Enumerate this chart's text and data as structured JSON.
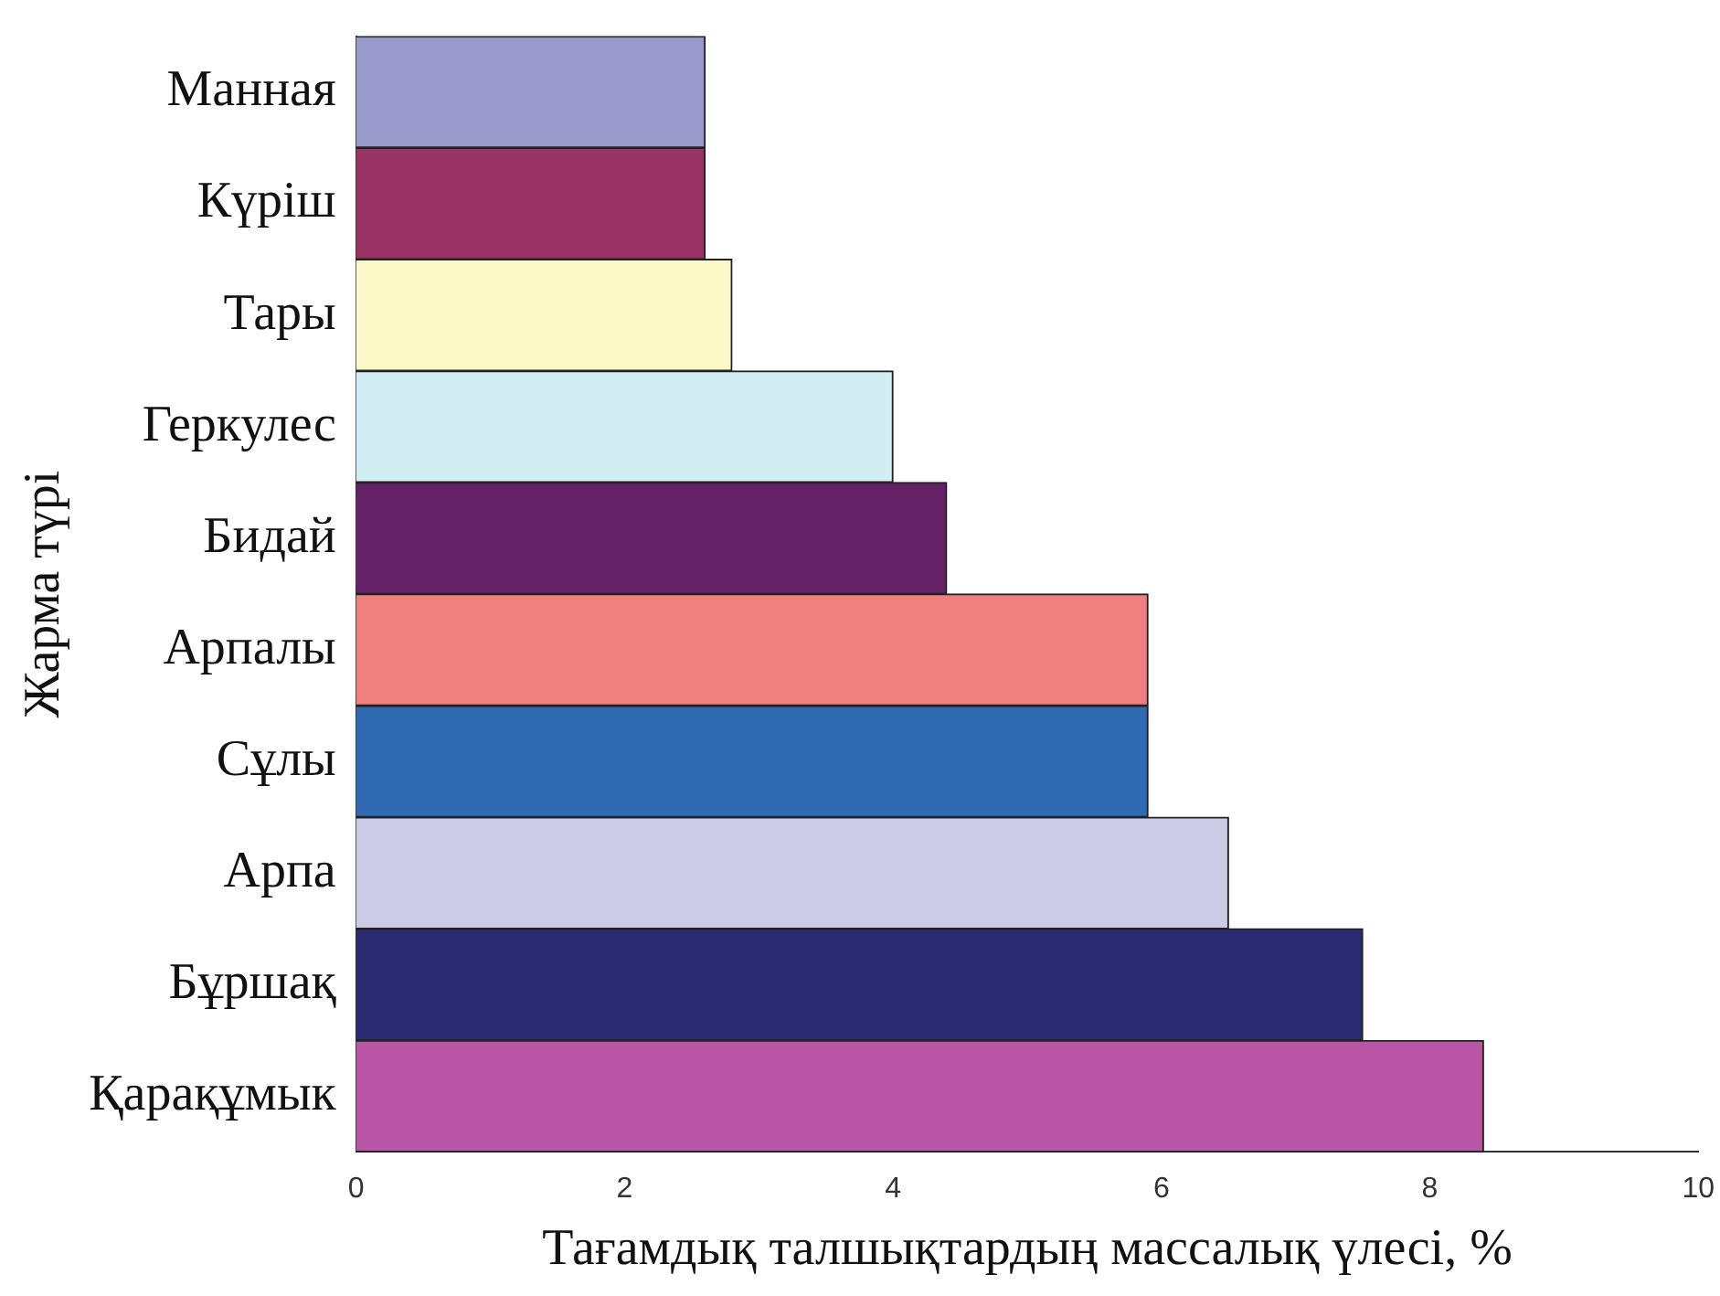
{
  "chart_data": {
    "type": "bar",
    "orientation": "horizontal",
    "xlabel": "Тағамдық талшықтардың массалық үлесі, %",
    "ylabel": "Жарма түрі",
    "categories": [
      "Манная",
      "Күріш",
      "Тары",
      "Геркулес",
      "Бидай",
      "Арпалы",
      "Сұлы",
      "Арпа",
      "Бұршақ",
      "Қарақұмык"
    ],
    "values": [
      2.6,
      2.6,
      2.8,
      4.0,
      4.4,
      5.9,
      5.9,
      6.5,
      7.5,
      8.4
    ],
    "colors": [
      "#9999cc",
      "#993366",
      "#fafac8",
      "#d2eef2",
      "#662266",
      "#f08080",
      "#2e6bb3",
      "#cccce6",
      "#2b2b73",
      "#bb55a5"
    ],
    "xlim": [
      0,
      10
    ],
    "xticks": [
      0,
      2,
      4,
      6,
      8,
      10
    ],
    "grid": false,
    "legend": false
  }
}
